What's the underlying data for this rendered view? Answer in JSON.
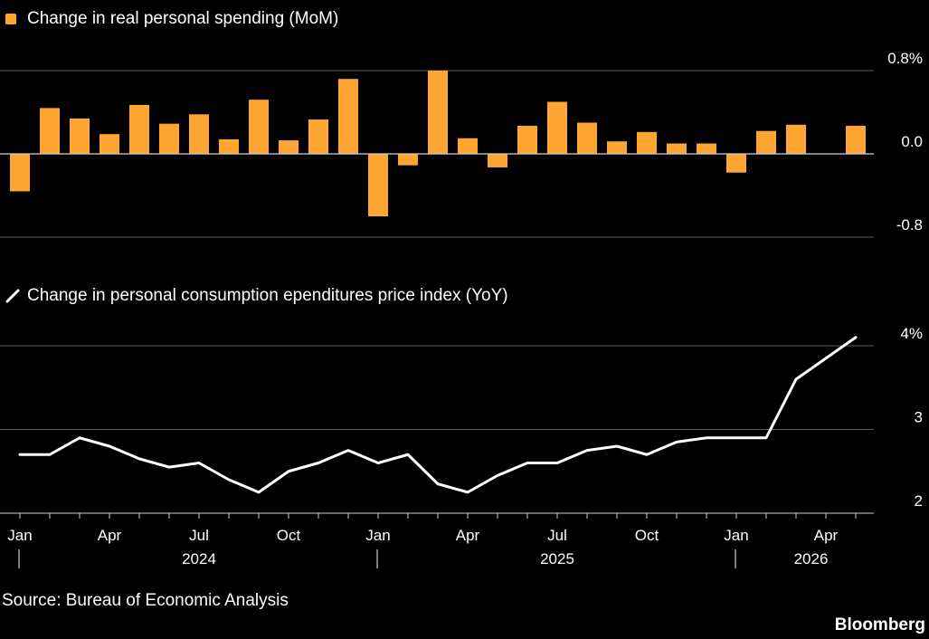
{
  "chart_data": [
    {
      "type": "bar",
      "legend": "Change in real personal spending (MoM)",
      "color": "#ffa632",
      "y_ticks": [
        "0.8%",
        "0.0",
        "-0.8"
      ],
      "y_tick_values": [
        0.8,
        0.0,
        -0.8
      ],
      "ylim": [
        -0.8,
        0.8
      ],
      "grid": true,
      "x": [
        "2024-01",
        "2024-02",
        "2024-03",
        "2024-04",
        "2024-05",
        "2024-06",
        "2024-07",
        "2024-08",
        "2024-09",
        "2024-10",
        "2024-11",
        "2024-12",
        "2025-01",
        "2025-02",
        "2025-03",
        "2025-04",
        "2025-05",
        "2025-06",
        "2025-07",
        "2025-08",
        "2025-09",
        "2025-10",
        "2025-11",
        "2025-12",
        "2026-01",
        "2026-02",
        "2026-03",
        "2026-04",
        "2026-05"
      ],
      "values": [
        -0.36,
        0.44,
        0.34,
        0.19,
        0.47,
        0.29,
        0.38,
        0.14,
        0.52,
        0.13,
        0.33,
        0.72,
        -0.6,
        -0.11,
        0.8,
        0.15,
        -0.13,
        0.27,
        0.5,
        0.3,
        0.12,
        0.21,
        0.1,
        0.1,
        -0.18,
        0.22,
        0.28,
        null,
        0.27
      ]
    },
    {
      "type": "line",
      "legend": "Change in personal consumption ependitures price index (YoY)",
      "color": "#ffffff",
      "y_ticks": [
        "4%",
        "3",
        "2"
      ],
      "y_tick_values": [
        4,
        3,
        2
      ],
      "ylim": [
        2,
        4
      ],
      "grid": true,
      "x": [
        "2024-01",
        "2024-02",
        "2024-03",
        "2024-04",
        "2024-05",
        "2024-06",
        "2024-07",
        "2024-08",
        "2024-09",
        "2024-10",
        "2024-11",
        "2024-12",
        "2025-01",
        "2025-02",
        "2025-03",
        "2025-04",
        "2025-05",
        "2025-06",
        "2025-07",
        "2025-08",
        "2025-09",
        "2025-10",
        "2025-11",
        "2025-12",
        "2026-01",
        "2026-02",
        "2026-03",
        "2026-04",
        "2026-05"
      ],
      "values": [
        2.7,
        2.7,
        2.9,
        2.8,
        2.65,
        2.55,
        2.6,
        2.4,
        2.25,
        2.5,
        2.6,
        2.75,
        2.6,
        2.7,
        2.35,
        2.25,
        2.45,
        2.6,
        2.6,
        2.75,
        2.8,
        2.7,
        2.85,
        2.9,
        2.9,
        2.9,
        3.6,
        3.85,
        4.1
      ]
    }
  ],
  "x_axis": {
    "month_labels": [
      {
        "label": "Jan",
        "index": 0
      },
      {
        "label": "Apr",
        "index": 3
      },
      {
        "label": "Jul",
        "index": 6
      },
      {
        "label": "Oct",
        "index": 9
      },
      {
        "label": "Jan",
        "index": 12
      },
      {
        "label": "Apr",
        "index": 15
      },
      {
        "label": "Jul",
        "index": 18
      },
      {
        "label": "Oct",
        "index": 21
      },
      {
        "label": "Jan",
        "index": 24
      },
      {
        "label": "Apr",
        "index": 27
      }
    ],
    "year_labels": [
      {
        "label": "2024",
        "index": 6
      },
      {
        "label": "2025",
        "index": 18
      },
      {
        "label": "2026",
        "index": 26.5
      }
    ],
    "year_dividers": [
      0,
      12,
      24
    ]
  },
  "source": "Source: Bureau of Economic Analysis",
  "brand": "Bloomberg"
}
